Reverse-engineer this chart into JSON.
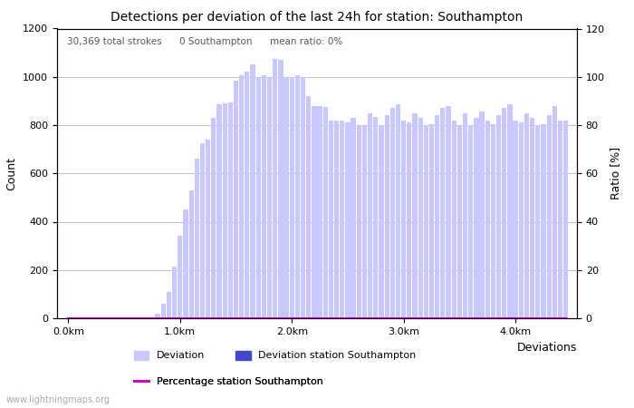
{
  "title": "Detections per deviation of the last 24h for station: Southampton",
  "ylabel_left": "Count",
  "ylabel_right": "Ratio [%]",
  "xlabel_right": "Deviations",
  "annotation": "30,369 total strokes      0 Southampton      mean ratio: 0%",
  "x_tick_labels": [
    "0.0km",
    "1.0km",
    "2.0km",
    "3.0km",
    "4.0km"
  ],
  "ylim_left": [
    0,
    1200
  ],
  "ylim_right": [
    0,
    120
  ],
  "yticks_left": [
    0,
    200,
    400,
    600,
    800,
    1000,
    1200
  ],
  "yticks_right": [
    0,
    20,
    40,
    60,
    80,
    100,
    120
  ],
  "bar_color_deviation": "#c8c8ff",
  "bar_color_station": "#4444cc",
  "line_color": "#cc00cc",
  "background_color": "#ffffff",
  "watermark": "www.lightningmaps.org",
  "deviation_values": [
    5,
    5,
    5,
    5,
    5,
    5,
    5,
    5,
    5,
    5,
    5,
    5,
    5,
    5,
    5,
    5,
    20,
    60,
    110,
    215,
    340,
    450,
    530,
    660,
    725,
    740,
    830,
    885,
    890,
    895,
    985,
    1005,
    1020,
    1050,
    1000,
    1005,
    1000,
    1075,
    1070,
    1000,
    1000,
    1005,
    1000,
    920,
    880,
    880,
    875,
    820,
    820,
    820,
    810,
    830,
    800,
    800,
    850,
    835,
    800,
    840,
    870,
    885,
    820,
    810,
    850,
    830,
    800,
    805,
    840,
    870,
    880,
    820,
    800,
    850,
    800,
    830,
    855,
    820,
    805,
    840,
    870,
    885,
    820,
    810,
    850,
    830,
    800,
    805,
    840,
    880,
    820,
    820
  ],
  "station_values": [
    0,
    0,
    0,
    0,
    0,
    0,
    0,
    0,
    0,
    0,
    0,
    0,
    0,
    0,
    0,
    0,
    0,
    0,
    0,
    0,
    0,
    0,
    0,
    0,
    0,
    0,
    0,
    0,
    0,
    0,
    0,
    0,
    0,
    0,
    0,
    0,
    0,
    0,
    0,
    0,
    0,
    0,
    0,
    0,
    0,
    0,
    0,
    0,
    0,
    0,
    0,
    0,
    0,
    0,
    0,
    0,
    0,
    0,
    0,
    0,
    0,
    0,
    0,
    0,
    0,
    0,
    0,
    0,
    0,
    0,
    0,
    0,
    0,
    0,
    0,
    0,
    0,
    0,
    0,
    0,
    0,
    0,
    0,
    0,
    0,
    0,
    0,
    0,
    0,
    0
  ],
  "percentage_values": [
    0,
    0,
    0,
    0,
    0,
    0,
    0,
    0,
    0,
    0,
    0,
    0,
    0,
    0,
    0,
    0,
    0,
    0,
    0,
    0,
    0,
    0,
    0,
    0,
    0,
    0,
    0,
    0,
    0,
    0,
    0,
    0,
    0,
    0,
    0,
    0,
    0,
    0,
    0,
    0,
    0,
    0,
    0,
    0,
    0,
    0,
    0,
    0,
    0,
    0,
    0,
    0,
    0,
    0,
    0,
    0,
    0,
    0,
    0,
    0,
    0,
    0,
    0,
    0,
    0,
    0,
    0,
    0,
    0,
    0,
    0,
    0,
    0,
    0,
    0,
    0,
    0,
    0,
    0,
    0,
    0,
    0,
    0,
    0,
    0,
    0,
    0,
    0,
    0,
    0
  ],
  "n_bars": 90,
  "km_per_bar": 0.05
}
